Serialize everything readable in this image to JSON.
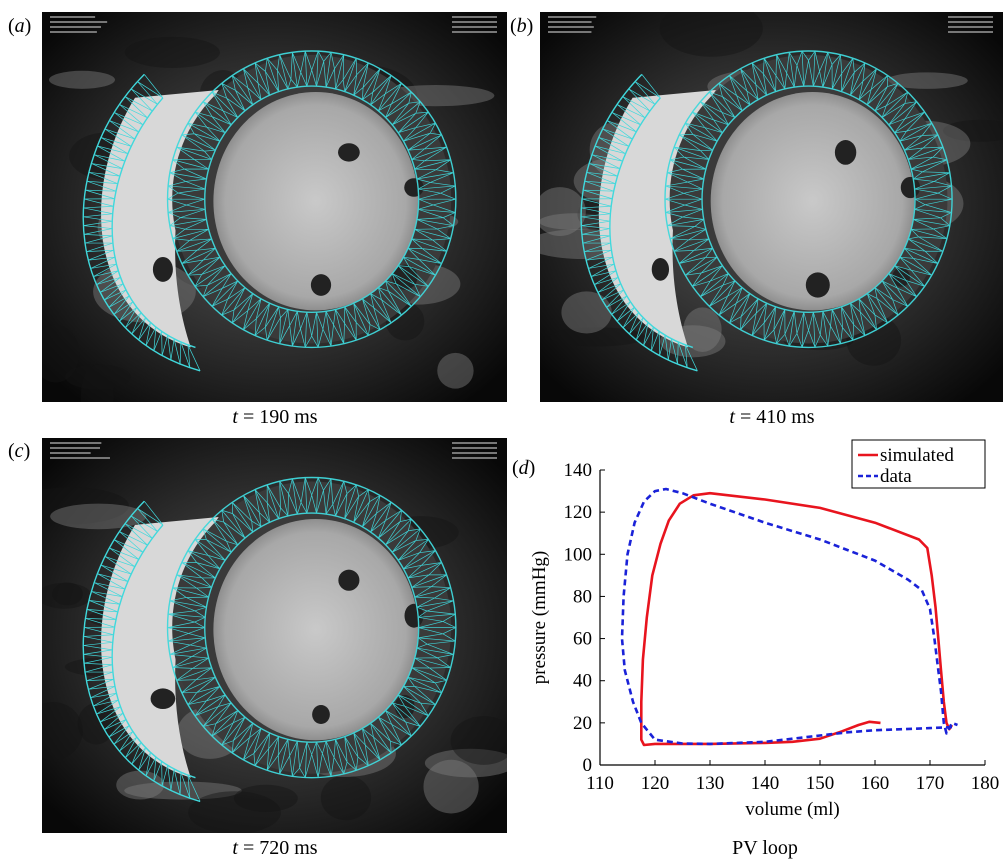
{
  "panels": {
    "a": {
      "letter": "a",
      "time_prefix": "t",
      "time_value": "= 190 ms"
    },
    "b": {
      "letter": "b",
      "time_prefix": "t",
      "time_value": "= 410 ms"
    },
    "c": {
      "letter": "c",
      "time_prefix": "t",
      "time_value": "= 720 ms"
    },
    "d": {
      "letter": "d",
      "caption": "PV  loop"
    }
  },
  "colors": {
    "mesh": "#40d8dc",
    "simulated": "#e8141e",
    "data": "#1a22d8"
  },
  "chart_data": {
    "type": "line",
    "xlabel": "volume (ml)",
    "ylabel": "pressure (mmHg)",
    "xlim": [
      110,
      180
    ],
    "ylim": [
      0,
      140
    ],
    "xticks": [
      110,
      120,
      130,
      140,
      150,
      160,
      170,
      180
    ],
    "yticks": [
      0,
      20,
      40,
      60,
      80,
      100,
      120,
      140
    ],
    "legend_position": "top-right",
    "series": [
      {
        "name": "simulated",
        "style": "solid",
        "points": [
          [
            161,
            20
          ],
          [
            159,
            20.5
          ],
          [
            157,
            19
          ],
          [
            154,
            16
          ],
          [
            150,
            12.5
          ],
          [
            145,
            11
          ],
          [
            140,
            10.5
          ],
          [
            130,
            10
          ],
          [
            120,
            10
          ],
          [
            118,
            9.5
          ],
          [
            117.5,
            12
          ],
          [
            117.5,
            30
          ],
          [
            117.8,
            50
          ],
          [
            118.5,
            70
          ],
          [
            119.5,
            90
          ],
          [
            121,
            105
          ],
          [
            122.5,
            116
          ],
          [
            124.5,
            124
          ],
          [
            127,
            128
          ],
          [
            130,
            129
          ],
          [
            140,
            126
          ],
          [
            150,
            122
          ],
          [
            160,
            115
          ],
          [
            168,
            107
          ],
          [
            169.5,
            103
          ],
          [
            170.3,
            90
          ],
          [
            171,
            75
          ],
          [
            171.5,
            60
          ],
          [
            172,
            45
          ],
          [
            172.5,
            30
          ],
          [
            173,
            20
          ],
          [
            173.5,
            17
          ],
          [
            174,
            19
          ]
        ]
      },
      {
        "name": "data",
        "style": "dashed",
        "points": [
          [
            174,
            18
          ],
          [
            170,
            17.5
          ],
          [
            165,
            17
          ],
          [
            160,
            16.5
          ],
          [
            155,
            15.5
          ],
          [
            150,
            14
          ],
          [
            145,
            12.5
          ],
          [
            140,
            11
          ],
          [
            135,
            10.5
          ],
          [
            130,
            10
          ],
          [
            125,
            10.2
          ],
          [
            120,
            12
          ],
          [
            117.5,
            20
          ],
          [
            116,
            30
          ],
          [
            114.5,
            45
          ],
          [
            114,
            60
          ],
          [
            114.3,
            80
          ],
          [
            115,
            100
          ],
          [
            116.3,
            115
          ],
          [
            118,
            125
          ],
          [
            120,
            130
          ],
          [
            122,
            131
          ],
          [
            125,
            129
          ],
          [
            130,
            124
          ],
          [
            140,
            115
          ],
          [
            150,
            107
          ],
          [
            160,
            97
          ],
          [
            166,
            88
          ],
          [
            168.5,
            83
          ],
          [
            170,
            74
          ],
          [
            170.8,
            60
          ],
          [
            171.5,
            45
          ],
          [
            172,
            35
          ],
          [
            172.5,
            20
          ],
          [
            173,
            15
          ],
          [
            174,
            20
          ],
          [
            175,
            19
          ]
        ]
      }
    ]
  }
}
